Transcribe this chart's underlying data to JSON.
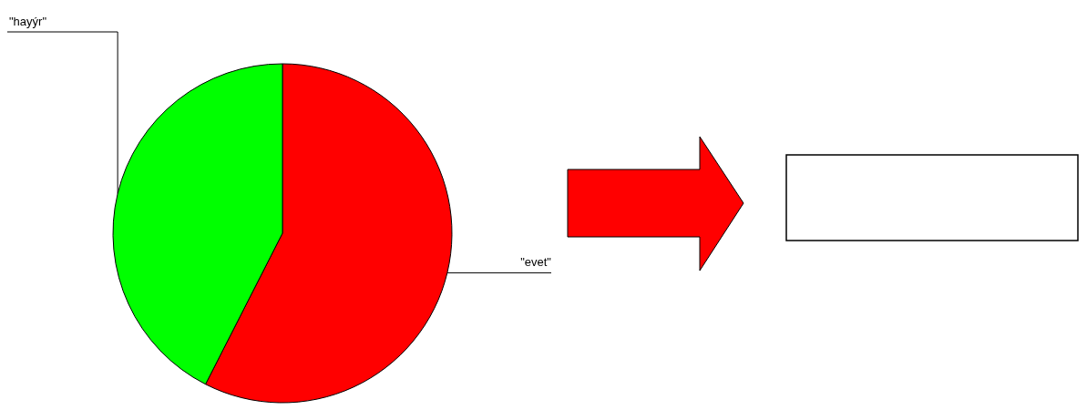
{
  "chart_data": {
    "type": "pie",
    "categories": [
      "\"evet\"",
      "\"hayýr\""
    ],
    "values": [
      57.5,
      42.5
    ],
    "colors": [
      "#ff0000",
      "#00ff00"
    ]
  }
}
